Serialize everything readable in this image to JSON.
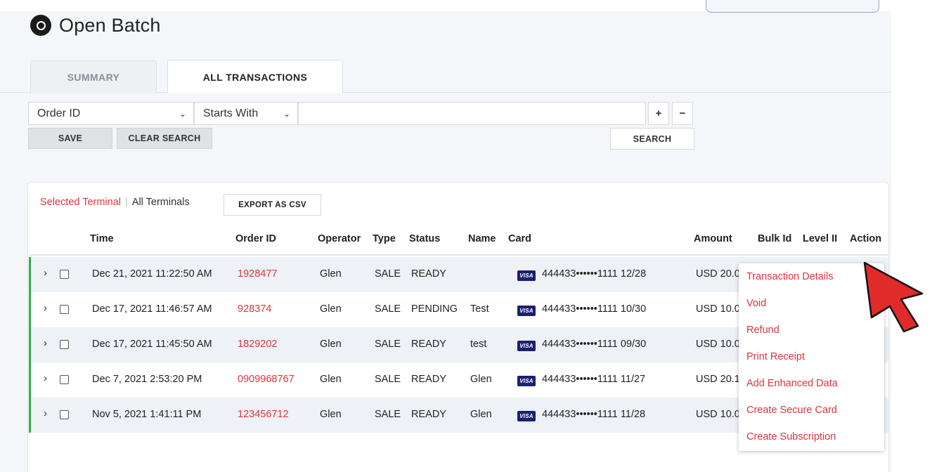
{
  "page": {
    "title": "Open Batch"
  },
  "tabs": [
    {
      "label": "SUMMARY",
      "active": false
    },
    {
      "label": "ALL TRANSACTIONS",
      "active": true
    }
  ],
  "filter": {
    "field": "Order ID",
    "operator": "Starts With",
    "value": "",
    "add_label": "+",
    "remove_label": "−",
    "save_label": "SAVE",
    "clear_label": "CLEAR SEARCH",
    "search_label": "SEARCH"
  },
  "panel": {
    "selected_terminal": "Selected Terminal",
    "separator": "|",
    "all_terminals": "All Terminals",
    "export_label": "EXPORT AS CSV"
  },
  "table": {
    "columns": [
      "Time",
      "Order ID",
      "Operator",
      "Type",
      "Status",
      "Name",
      "Card",
      "Amount",
      "Bulk Id",
      "Level II",
      "Action"
    ],
    "rows": [
      {
        "time": "Dec 21, 2021 11:22:50 AM",
        "order_id": "1928477",
        "operator": "Glen",
        "type": "SALE",
        "status": "READY",
        "name": "",
        "card_brand": "VISA",
        "card": "444433••••••1111 12/28",
        "amount": "USD 20.0"
      },
      {
        "time": "Dec 17, 2021 11:46:57 AM",
        "order_id": "928374",
        "operator": "Glen",
        "type": "SALE",
        "status": "PENDING",
        "name": "Test",
        "card_brand": "VISA",
        "card": "444433••••••1111 10/30",
        "amount": "USD 10.0"
      },
      {
        "time": "Dec 17, 2021 11:45:50 AM",
        "order_id": "1829202",
        "operator": "Glen",
        "type": "SALE",
        "status": "READY",
        "name": "test",
        "card_brand": "VISA",
        "card": "444433••••••1111 09/30",
        "amount": "USD 10.0"
      },
      {
        "time": "Dec 7, 2021 2:53:20 PM",
        "order_id": "0909968767",
        "operator": "Glen",
        "type": "SALE",
        "status": "READY",
        "name": "Glen",
        "card_brand": "VISA",
        "card": "444433••••••1111 11/27",
        "amount": "USD 20.1"
      },
      {
        "time": "Nov 5, 2021 1:41:11 PM",
        "order_id": "123456712",
        "operator": "Glen",
        "type": "SALE",
        "status": "READY",
        "name": "Glen",
        "card_brand": "VISA",
        "card": "444433••••••1111 11/28",
        "amount": "USD 10.0"
      }
    ]
  },
  "action_menu": {
    "items": [
      "Transaction Details",
      "Void",
      "Refund",
      "Print Receipt",
      "Add Enhanced Data",
      "Create Secure Card",
      "Create Subscription"
    ]
  },
  "colors": {
    "accent_red": "#d9363e",
    "row_status_green": "#2fae4e",
    "visa_blue": "#1a1f71",
    "cursor_red": "#e12b2b"
  },
  "icons": {
    "title": "open-batch-icon",
    "expand": "chevron-right-icon",
    "dropdown": "chevron-down-icon",
    "cursor": "mouse-pointer-icon"
  }
}
